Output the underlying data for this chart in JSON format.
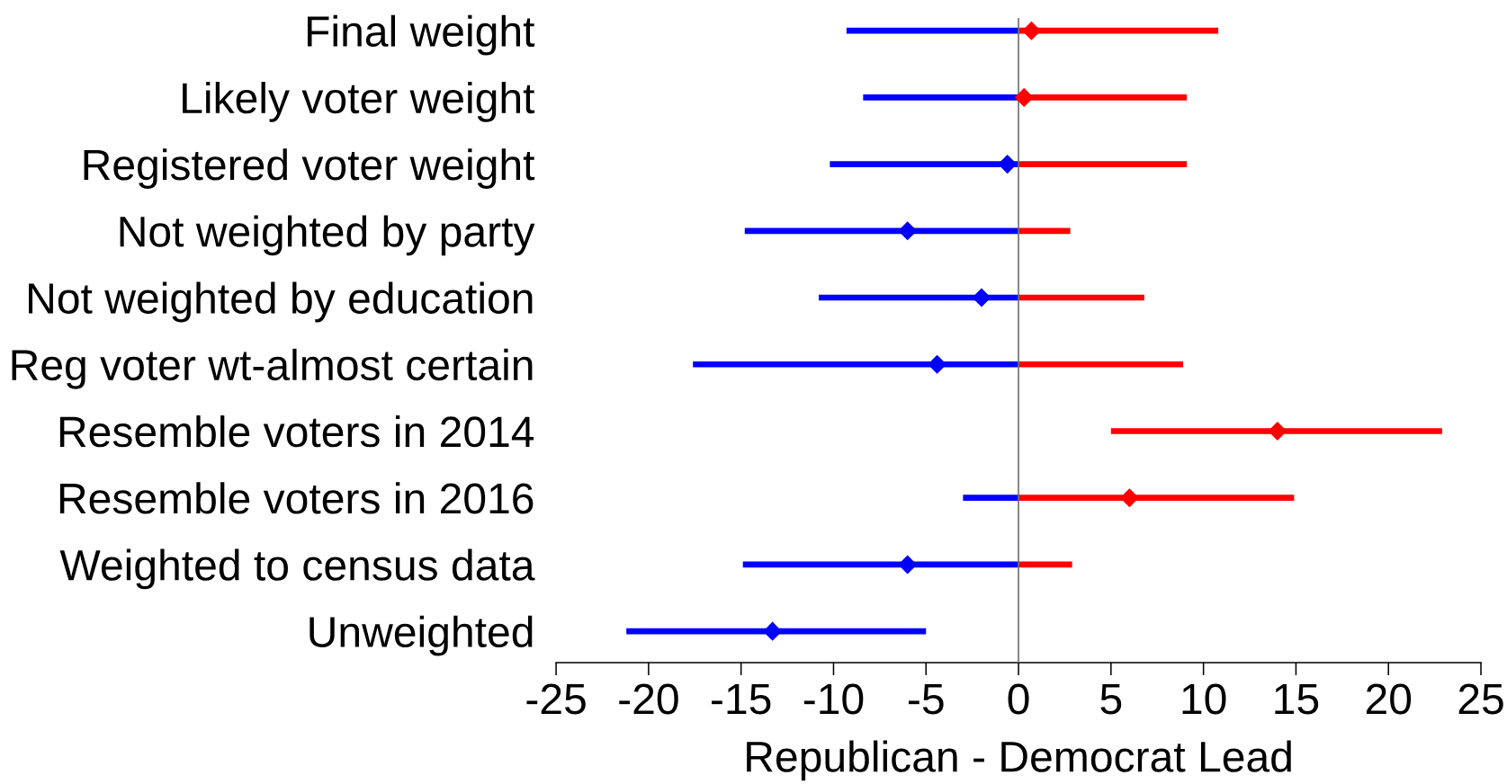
{
  "chart_data": {
    "type": "bar",
    "orientation": "horizontal",
    "categories": [
      "Final weight",
      "Likely voter weight",
      "Registered voter weight",
      "Not weighted by party",
      "Not weighted by education",
      "Reg voter wt-almost certain",
      "Resemble voters in 2014",
      "Resemble voters in 2016",
      "Weighted to census data",
      "Unweighted"
    ],
    "xlabel": "Republican - Democrat Lead",
    "xlim": [
      -25,
      25
    ],
    "xticks": [
      -25,
      -20,
      -15,
      -10,
      -5,
      0,
      5,
      10,
      15,
      20,
      25
    ],
    "series": [
      {
        "color": "#0000ff",
        "base": [
          -9.3,
          -8.4,
          -10.2,
          -14.8,
          -10.8,
          -17.6,
          null,
          -3.0,
          -14.9,
          -21.2
        ],
        "values": [
          9.3,
          8.4,
          10.2,
          14.8,
          10.8,
          17.6,
          null,
          3.0,
          14.9,
          16.2
        ]
      },
      {
        "color": "#ff0000",
        "base": [
          0,
          0,
          0,
          0,
          0,
          0,
          5.0,
          0,
          0,
          null
        ],
        "values": [
          10.8,
          9.1,
          9.1,
          2.8,
          6.8,
          8.9,
          17.9,
          14.9,
          2.9,
          null
        ]
      },
      {
        "type": "scatter",
        "marker": "diamond",
        "colors": [
          "#ff0000",
          "#ff0000",
          "#0000ff",
          "#0000ff",
          "#0000ff",
          "#0000ff",
          "#ff0000",
          "#ff0000",
          "#0000ff",
          "#0000ff"
        ],
        "values": [
          0.7,
          0.3,
          -0.6,
          -6.0,
          -2.0,
          -4.4,
          14.0,
          6.0,
          -6.0,
          -13.3
        ]
      }
    ],
    "ref_lines": [
      {
        "axis": "x",
        "value": 0,
        "color": "#707070"
      }
    ],
    "grid": false
  }
}
